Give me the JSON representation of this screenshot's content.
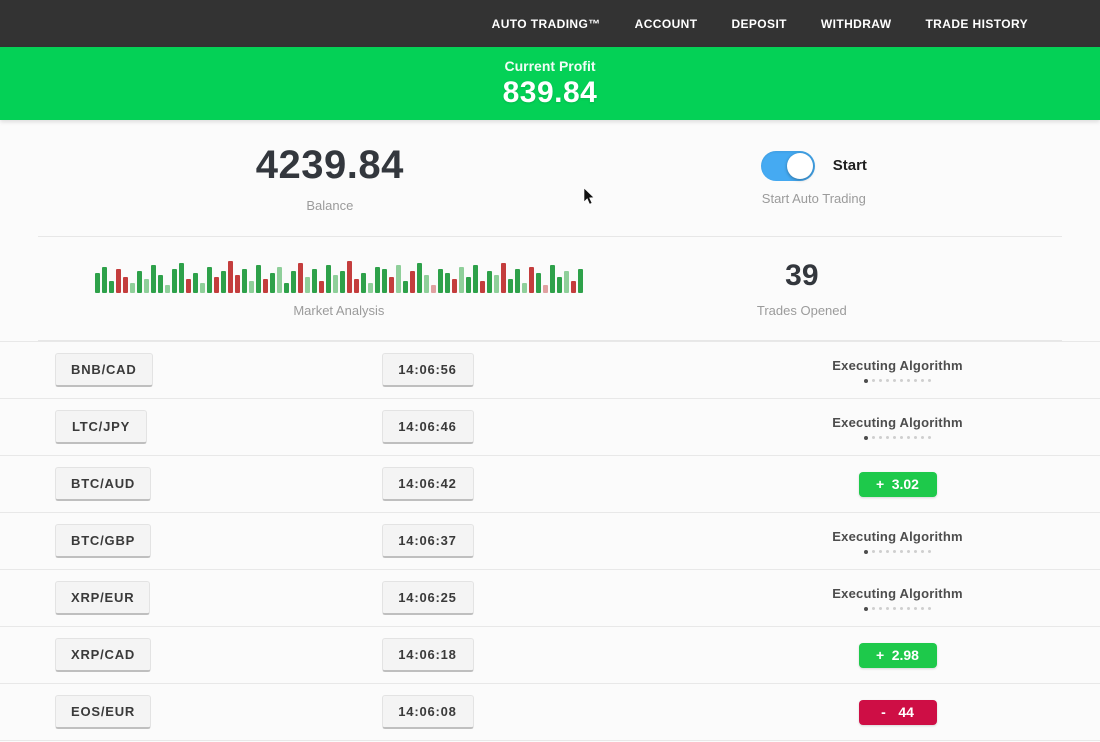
{
  "nav": {
    "items": [
      "AUTO TRADING™",
      "ACCOUNT",
      "DEPOSIT",
      "WITHDRAW",
      "TRADE HISTORY"
    ]
  },
  "banner": {
    "label": "Current Profit",
    "value": "839.84"
  },
  "stats": {
    "balance_value": "4239.84",
    "balance_label": "Balance",
    "toggle_label": "Start",
    "toggle_caption": "Start Auto Trading",
    "toggle_state": "on",
    "market_label": "Market Analysis",
    "trades_opened": "39",
    "trades_opened_label": "Trades Opened"
  },
  "market_bars": [
    [
      20,
      "g"
    ],
    [
      26,
      "g"
    ],
    [
      12,
      "g"
    ],
    [
      24,
      "r"
    ],
    [
      16,
      "r"
    ],
    [
      10,
      "G"
    ],
    [
      22,
      "g"
    ],
    [
      14,
      "G"
    ],
    [
      28,
      "g"
    ],
    [
      18,
      "g"
    ],
    [
      8,
      "G"
    ],
    [
      24,
      "g"
    ],
    [
      30,
      "g"
    ],
    [
      14,
      "r"
    ],
    [
      20,
      "g"
    ],
    [
      10,
      "G"
    ],
    [
      26,
      "g"
    ],
    [
      16,
      "r"
    ],
    [
      22,
      "g"
    ],
    [
      32,
      "r"
    ],
    [
      18,
      "r"
    ],
    [
      24,
      "g"
    ],
    [
      12,
      "G"
    ],
    [
      28,
      "g"
    ],
    [
      14,
      "r"
    ],
    [
      20,
      "g"
    ],
    [
      26,
      "G"
    ],
    [
      10,
      "g"
    ],
    [
      22,
      "g"
    ],
    [
      30,
      "r"
    ],
    [
      16,
      "G"
    ],
    [
      24,
      "g"
    ],
    [
      12,
      "r"
    ],
    [
      28,
      "g"
    ],
    [
      18,
      "G"
    ],
    [
      22,
      "g"
    ],
    [
      32,
      "r"
    ],
    [
      14,
      "r"
    ],
    [
      20,
      "g"
    ],
    [
      10,
      "G"
    ],
    [
      26,
      "g"
    ],
    [
      24,
      "g"
    ],
    [
      16,
      "r"
    ],
    [
      28,
      "G"
    ],
    [
      12,
      "g"
    ],
    [
      22,
      "r"
    ],
    [
      30,
      "g"
    ],
    [
      18,
      "G"
    ],
    [
      8,
      "R"
    ],
    [
      24,
      "g"
    ],
    [
      20,
      "g"
    ],
    [
      14,
      "r"
    ],
    [
      26,
      "G"
    ],
    [
      16,
      "g"
    ],
    [
      28,
      "g"
    ],
    [
      12,
      "r"
    ],
    [
      22,
      "g"
    ],
    [
      18,
      "G"
    ],
    [
      30,
      "r"
    ],
    [
      14,
      "g"
    ],
    [
      24,
      "g"
    ],
    [
      10,
      "G"
    ],
    [
      26,
      "r"
    ],
    [
      20,
      "g"
    ],
    [
      8,
      "R"
    ],
    [
      28,
      "g"
    ],
    [
      16,
      "g"
    ],
    [
      22,
      "G"
    ],
    [
      12,
      "r"
    ],
    [
      24,
      "g"
    ]
  ],
  "status_dots": {
    "count": 10,
    "active_index": 0
  },
  "trades": [
    {
      "pair": "BNB/CAD",
      "time": "14:06:56",
      "status": {
        "type": "executing",
        "label": "Executing Algorithm"
      }
    },
    {
      "pair": "LTC/JPY",
      "time": "14:06:46",
      "status": {
        "type": "executing",
        "label": "Executing Algorithm"
      }
    },
    {
      "pair": "BTC/AUD",
      "time": "14:06:42",
      "status": {
        "type": "profit",
        "sign": "+",
        "value": "3.02"
      }
    },
    {
      "pair": "BTC/GBP",
      "time": "14:06:37",
      "status": {
        "type": "executing",
        "label": "Executing Algorithm"
      }
    },
    {
      "pair": "XRP/EUR",
      "time": "14:06:25",
      "status": {
        "type": "executing",
        "label": "Executing Algorithm"
      }
    },
    {
      "pair": "XRP/CAD",
      "time": "14:06:18",
      "status": {
        "type": "profit",
        "sign": "+",
        "value": "2.98"
      }
    },
    {
      "pair": "EOS/EUR",
      "time": "14:06:08",
      "status": {
        "type": "loss",
        "sign": "-",
        "value": "44"
      }
    }
  ],
  "colors": {
    "nav_bg": "#333333",
    "banner_bg": "#04d156",
    "profit": "#1ec94b",
    "loss": "#ce0e45",
    "toggle": "#45aaf2",
    "bar_g": "#2ea14a",
    "bar_G": "#8fcf9a",
    "bar_r": "#c43d3d",
    "bar_R": "#e0a1a1"
  }
}
